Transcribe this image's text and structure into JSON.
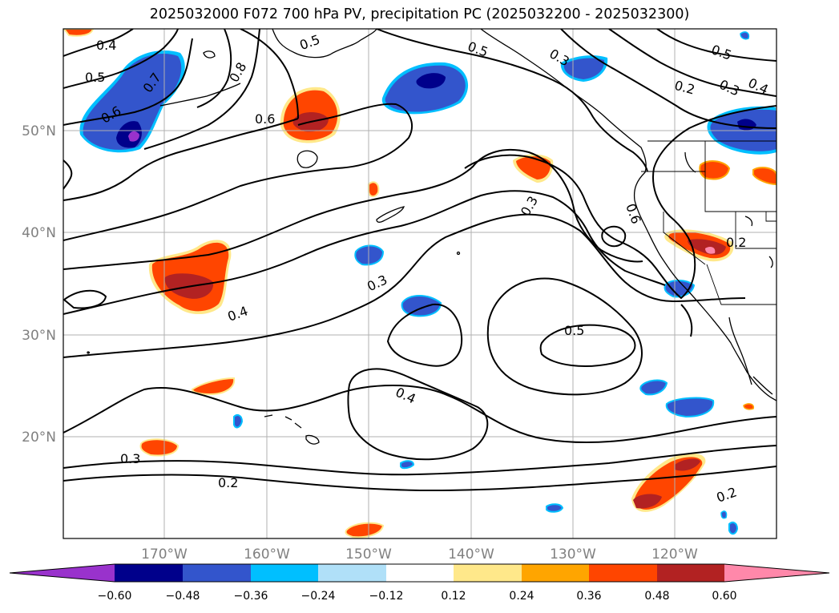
{
  "title": "2025032000 F072 700 hPa PV, precipitation PC (2025032200 - 2025032300)",
  "latitude_labels": [
    {
      "text": "50°N",
      "value": 50
    },
    {
      "text": "40°N",
      "value": 40
    },
    {
      "text": "30°N",
      "value": 30
    },
    {
      "text": "20°N",
      "value": 20
    }
  ],
  "longitude_labels": [
    {
      "text": "170°W",
      "value": -170
    },
    {
      "text": "160°W",
      "value": -160
    },
    {
      "text": "150°W",
      "value": -150
    },
    {
      "text": "140°W",
      "value": -140
    },
    {
      "text": "130°W",
      "value": -130
    },
    {
      "text": "120°W",
      "value": -120
    }
  ],
  "contour_labels": [
    "0.4",
    "0.5",
    "0.7",
    "0.6",
    "0.8",
    "0.5",
    "0.5",
    "0.3",
    "0.5",
    "0.2",
    "0.3",
    "0.4",
    "0.6",
    "0.3",
    "0.6",
    "0.2",
    "0.3",
    "0.4",
    "0.5",
    "0.4",
    "0.3",
    "0.2",
    "0.2"
  ],
  "colorbar": {
    "colors": [
      "#9932cc",
      "#00008b",
      "#3355cc",
      "#00bfff",
      "#b0e0f8",
      "#ffffff",
      "#ffe88a",
      "#ffa500",
      "#ff4500",
      "#b22222",
      "#ff88aa"
    ],
    "ticks": [
      "−0.60",
      "−0.48",
      "−0.36",
      "−0.24",
      "−0.12",
      "0.12",
      "0.24",
      "0.36",
      "0.48",
      "0.60"
    ]
  }
}
